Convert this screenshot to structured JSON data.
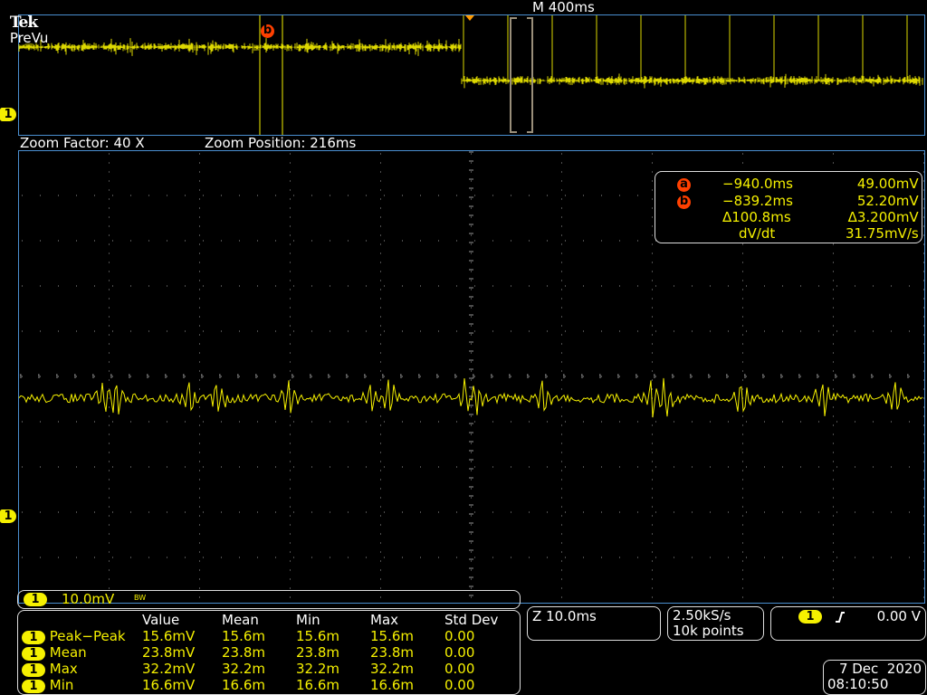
{
  "header": {
    "brand": "Tek",
    "mode": "PreVu",
    "timebase": "M 400ms"
  },
  "zoom_info": {
    "factor": "Zoom Factor: 40 X",
    "position": "Zoom Position: 216ms"
  },
  "cursor_readout": {
    "a_label": "a",
    "a_time": "−940.0ms",
    "a_volt": "49.00mV",
    "b_label": "b",
    "b_time": "−839.2ms",
    "b_volt": "52.20mV",
    "delta_time": "Δ100.8ms",
    "delta_volt": "Δ3.200mV",
    "rate_label": "dV/dt",
    "rate_value": "31.75mV/s"
  },
  "channel": {
    "number": "1",
    "scale": "10.0mV",
    "bw_flag": "BW"
  },
  "measurements": {
    "headers": [
      "",
      "Value",
      "Mean",
      "Min",
      "Max",
      "Std Dev"
    ],
    "rows": [
      {
        "ch": "1",
        "name": "Peak−Peak",
        "value": "15.6mV",
        "mean": "15.6m",
        "min": "15.6m",
        "max": "15.6m",
        "std": "0.00"
      },
      {
        "ch": "1",
        "name": "Mean",
        "value": "23.8mV",
        "mean": "23.8m",
        "min": "23.8m",
        "max": "23.8m",
        "std": "0.00"
      },
      {
        "ch": "1",
        "name": "Max",
        "value": "32.2mV",
        "mean": "32.2m",
        "min": "32.2m",
        "max": "32.2m",
        "std": "0.00"
      },
      {
        "ch": "1",
        "name": "Min",
        "value": "16.6mV",
        "mean": "16.6m",
        "min": "16.6m",
        "max": "16.6m",
        "std": "0.00"
      }
    ]
  },
  "zoom_timebase": "Z 10.0ms",
  "acquisition": {
    "rate": "2.50kS/s",
    "points": "10k points"
  },
  "trigger": {
    "source": "1",
    "slope": "rising-edge-icon",
    "level": "0.00 V"
  },
  "datetime": {
    "date": "7 Dec  2020",
    "time": "08:10:50"
  },
  "colors": {
    "trace": "#f5f000",
    "cursor_marker": "#ff4000",
    "graticule_border": "#4a8fd0",
    "trigger_marker": "#ff9a00",
    "zoom_bracket": "#9a8f7a"
  }
}
